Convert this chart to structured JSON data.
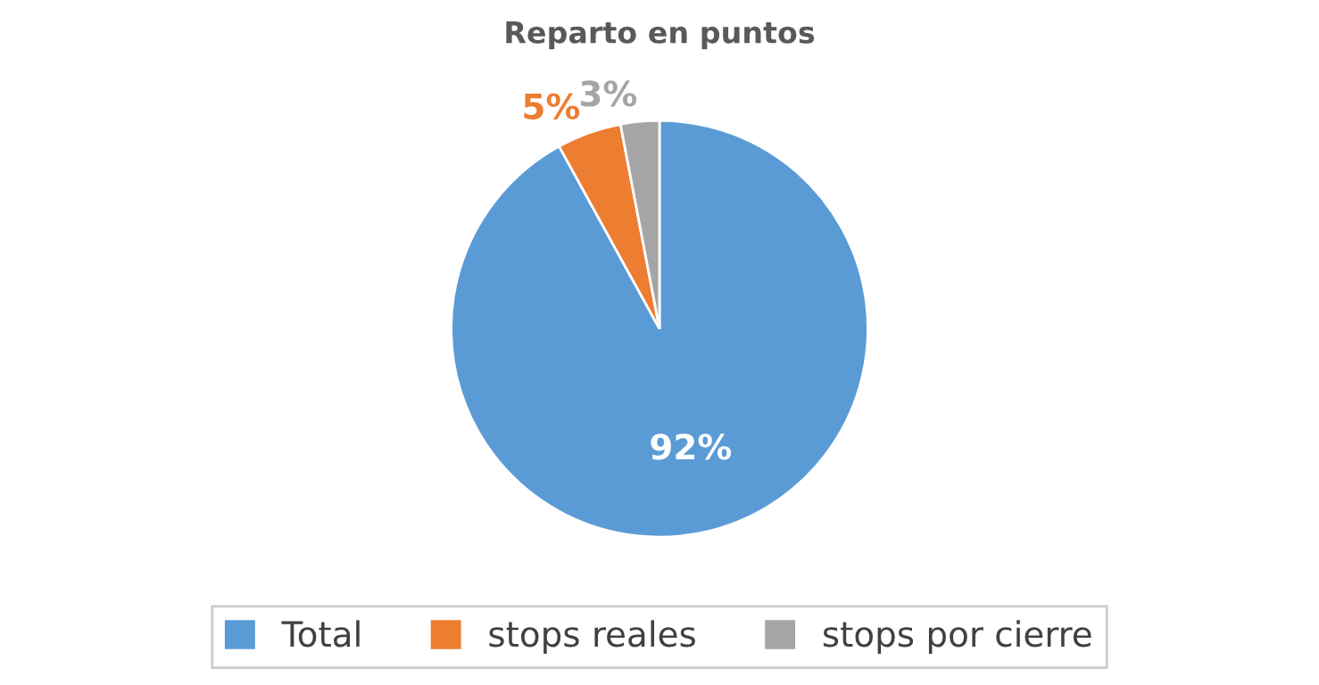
{
  "chart_data": {
    "type": "pie",
    "title": "Reparto en puntos",
    "categories": [
      "Total",
      "stops reales",
      "stops por cierre"
    ],
    "values": [
      92,
      5,
      3
    ],
    "colors": [
      "#5b9bd5",
      "#ed7d31",
      "#a5a5a5"
    ],
    "value_labels": [
      "92%",
      "5%",
      "3%"
    ],
    "legend": "bottom"
  }
}
